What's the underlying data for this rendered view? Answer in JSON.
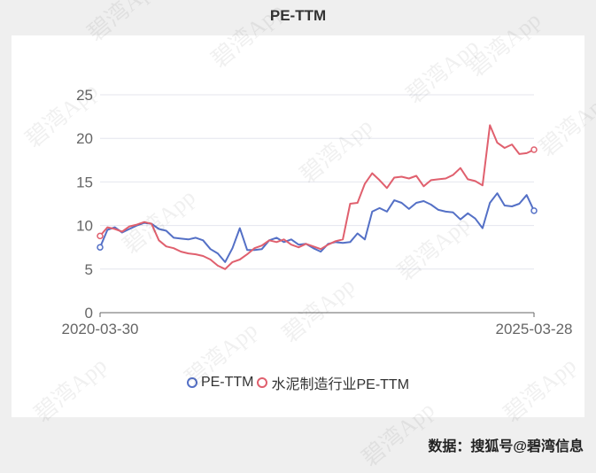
{
  "chart_data": {
    "type": "line",
    "title": "PE-TTM",
    "x_start_label": "2020-03-30",
    "x_end_label": "2025-03-28",
    "ylim": [
      0,
      25
    ],
    "yticks": [
      "0",
      "5",
      "10",
      "15",
      "20",
      "25"
    ],
    "grid": true,
    "legend_position": "bottom",
    "series": [
      {
        "name": "PE-TTM",
        "color": "#5470c6",
        "values": [
          7.5,
          9.5,
          9.8,
          9.2,
          9.6,
          10.0,
          10.3,
          10.2,
          9.6,
          9.4,
          8.6,
          8.5,
          8.4,
          8.6,
          8.3,
          7.3,
          6.8,
          5.8,
          7.4,
          9.7,
          7.2,
          7.2,
          7.3,
          8.3,
          8.6,
          8.1,
          8.4,
          7.8,
          7.9,
          7.4,
          7.0,
          7.9,
          8.1,
          8.0,
          8.1,
          9.1,
          8.4,
          11.6,
          12.0,
          11.6,
          12.9,
          12.6,
          11.9,
          12.6,
          12.8,
          12.4,
          11.8,
          11.6,
          11.5,
          10.7,
          11.4,
          10.8,
          9.7,
          12.6,
          13.7,
          12.3,
          12.2,
          12.5,
          13.5,
          11.7
        ]
      },
      {
        "name": "水泥制造行业PE-TTM",
        "color": "#e0606e",
        "values": [
          8.8,
          9.8,
          9.6,
          9.3,
          9.9,
          10.1,
          10.4,
          10.2,
          8.3,
          7.6,
          7.4,
          7.0,
          6.8,
          6.7,
          6.5,
          6.1,
          5.4,
          5.0,
          5.8,
          6.1,
          6.7,
          7.4,
          7.7,
          8.3,
          8.1,
          8.4,
          7.8,
          7.5,
          7.9,
          7.6,
          7.3,
          7.8,
          8.2,
          8.4,
          12.5,
          12.6,
          14.8,
          16.0,
          15.2,
          14.3,
          15.5,
          15.6,
          15.4,
          15.7,
          14.5,
          15.2,
          15.3,
          15.4,
          15.8,
          16.6,
          15.3,
          15.1,
          14.6,
          21.5,
          19.5,
          18.9,
          19.3,
          18.2,
          18.3,
          18.7
        ]
      }
    ]
  },
  "footer": {
    "source_text": "数据：搜狐号@碧湾信息"
  },
  "watermark_text": "碧湾App"
}
